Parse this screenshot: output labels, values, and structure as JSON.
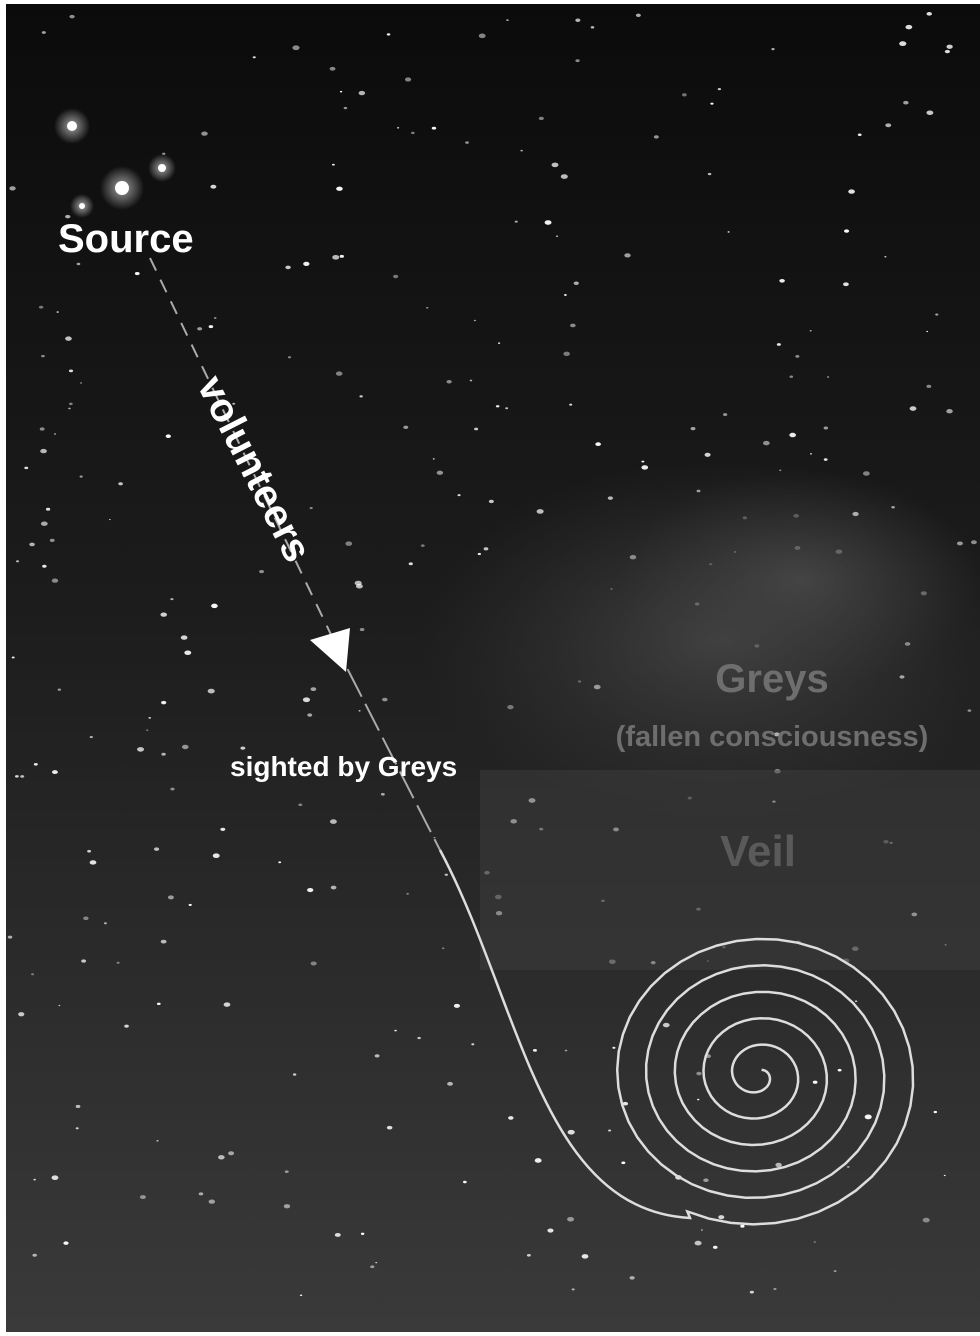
{
  "labels": {
    "source": "Source",
    "path": "volunteers",
    "sighting": "sighted by Greys",
    "greys": "Greys",
    "greys_note": "(fallen consciousness)",
    "veil": "Veil"
  }
}
